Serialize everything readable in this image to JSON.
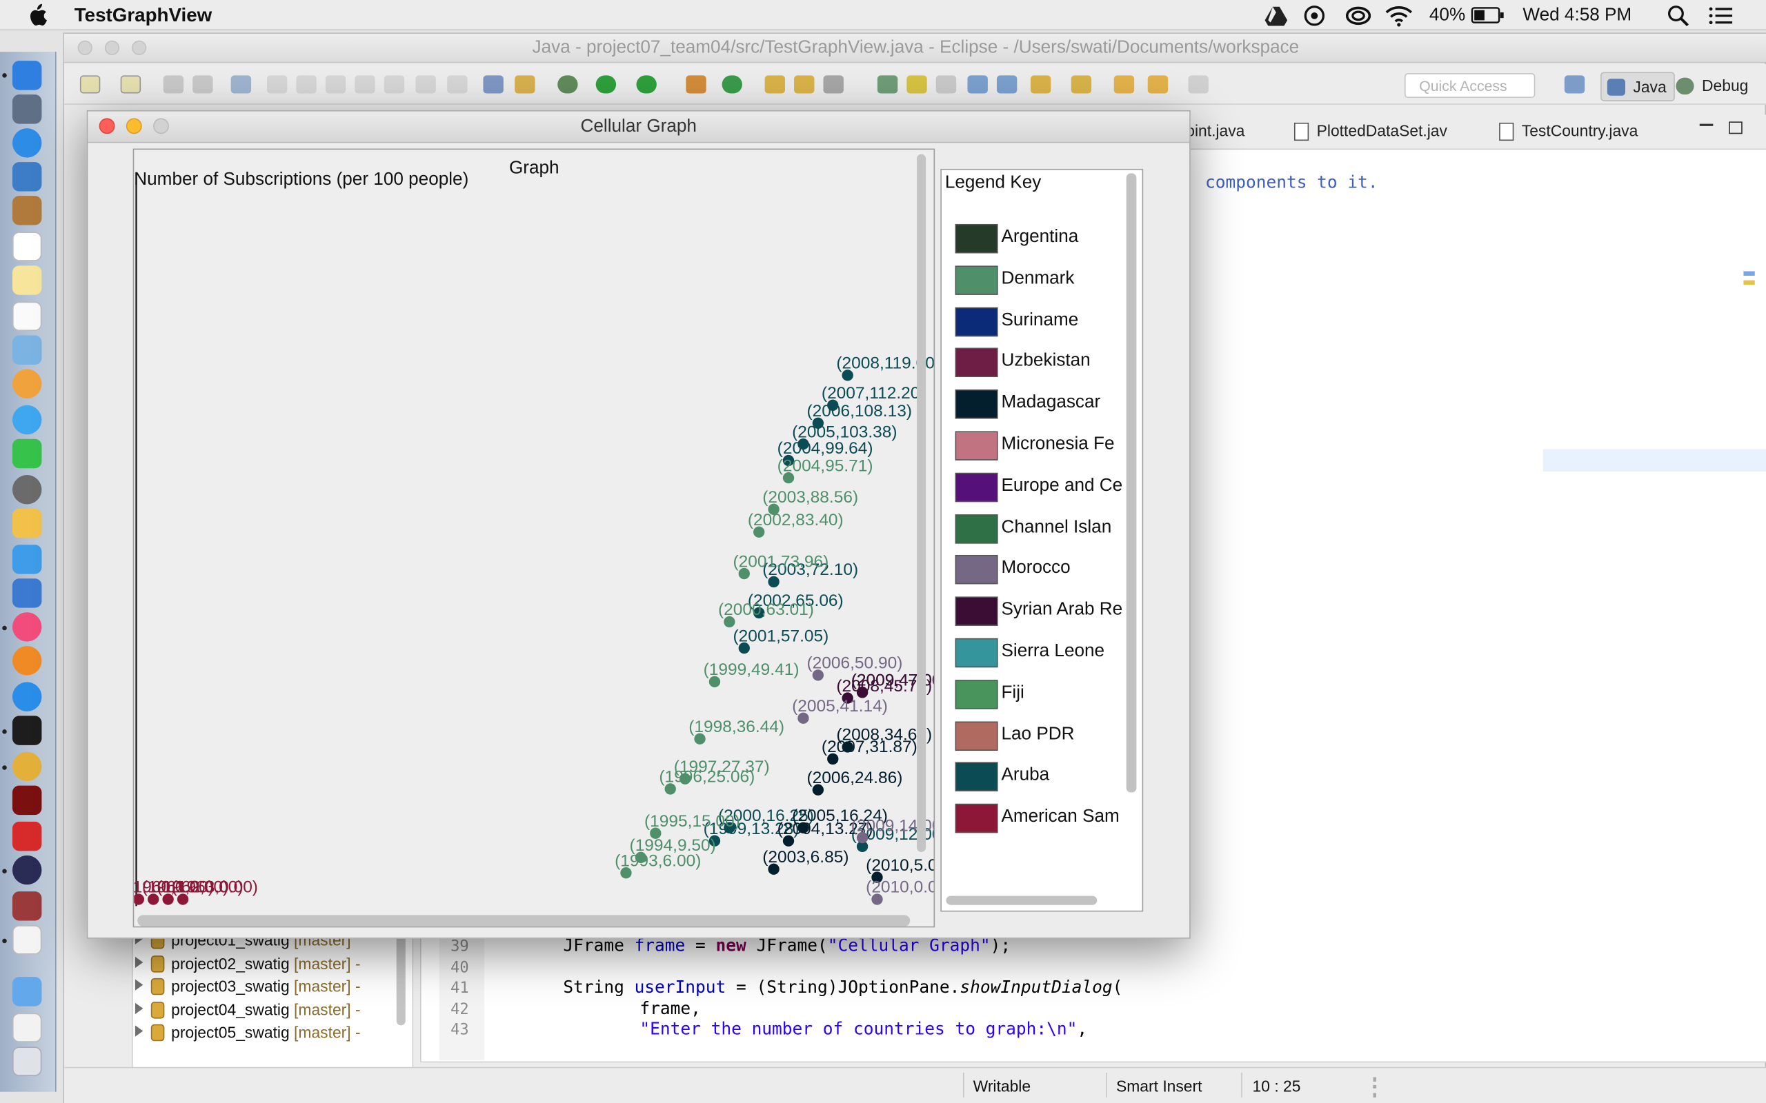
{
  "menubar": {
    "app_name": "TestGraphView",
    "battery": "40%",
    "clock": "Wed 4:58 PM"
  },
  "eclipse": {
    "title": "Java - project07_team04/src/TestGraphView.java - Eclipse - /Users/swati/Documents/workspace",
    "quick_access_placeholder": "Quick Access",
    "perspective_java": "Java",
    "perspective_debug": "Debug"
  },
  "editor": {
    "tabs": [
      "oint.java",
      "PlottedDataSet.jav",
      "TestCountry.java"
    ],
    "visible_comment": "components to it.",
    "line_numbers": [
      "39",
      "40",
      "41",
      "42",
      "43"
    ],
    "code": {
      "l39_a": "JFrame ",
      "l39_field": "frame",
      "l39_b": " = ",
      "l39_kw": "new",
      "l39_c": " JFrame(",
      "l39_str": "\"Cellular Graph\"",
      "l39_d": ");",
      "l41_a": "String ",
      "l41_field": "userInput",
      "l41_b": " = (String)JOptionPane.",
      "l41_method": "showInputDialog",
      "l41_c": "(",
      "l42": "frame,",
      "l43_str": "\"Enter the number of countries to graph:\\n\"",
      "l43_b": ","
    }
  },
  "project_explorer": {
    "items": [
      {
        "name": "project01_swatig",
        "branch": "[master]"
      },
      {
        "name": "project02_swatig",
        "branch": "[master] -"
      },
      {
        "name": "project03_swatig",
        "branch": "[master] -"
      },
      {
        "name": "project04_swatig",
        "branch": "[master] -"
      },
      {
        "name": "project05_swatig",
        "branch": "[master] -"
      }
    ]
  },
  "status_bar": {
    "writable": "Writable",
    "insert_mode": "Smart Insert",
    "position": "10 : 25"
  },
  "graph_window": {
    "title": "Cellular Graph",
    "graph_title": "Graph",
    "y_axis_label": "Number of Subscriptions (per 100 people)"
  },
  "legend": {
    "title": "Legend Key",
    "items": [
      {
        "name": "Argentina",
        "color": "#263a2a"
      },
      {
        "name": "Denmark",
        "color": "#4f8f6a"
      },
      {
        "name": "Suriname",
        "color": "#0b2a78"
      },
      {
        "name": "Uzbekistan",
        "color": "#6e1d44"
      },
      {
        "name": "Madagascar",
        "color": "#031e2c"
      },
      {
        "name": "Micronesia Fe",
        "color": "#c27381"
      },
      {
        "name": "Europe and Ce",
        "color": "#55107a"
      },
      {
        "name": "Channel Islan",
        "color": "#2f7046"
      },
      {
        "name": "Morocco",
        "color": "#746884"
      },
      {
        "name": "Syrian Arab Re",
        "color": "#3b0c34"
      },
      {
        "name": "Sierra Leone",
        "color": "#35959c"
      },
      {
        "name": "Fiji",
        "color": "#48945c"
      },
      {
        "name": "Lao PDR",
        "color": "#b06a5f"
      },
      {
        "name": "Aruba",
        "color": "#0b4b54"
      },
      {
        "name": "American Sam",
        "color": "#8c1737"
      }
    ]
  },
  "chart_data": {
    "type": "scatter",
    "title": "Graph",
    "ylabel": "Number of Subscriptions (per 100 people)",
    "series": [
      {
        "name": "Aruba",
        "color": "#0b4b54",
        "points": [
          [
            1999,
            13.28
          ],
          [
            2000,
            16.25
          ],
          [
            2001,
            57.05
          ],
          [
            2002,
            65.06
          ],
          [
            2003,
            72.1
          ],
          [
            2004,
            99.64
          ],
          [
            2005,
            103.38
          ],
          [
            2006,
            108.13
          ],
          [
            2007,
            112.2
          ],
          [
            2008,
            119
          ],
          [
            2009,
            12
          ]
        ]
      },
      {
        "name": "Denmark",
        "color": "#4f8f6a",
        "points": [
          [
            1993,
            6
          ],
          [
            1994,
            9.5
          ],
          [
            1995,
            15
          ],
          [
            1996,
            25.06
          ],
          [
            1997,
            27.37
          ],
          [
            1998,
            36.44
          ],
          [
            1999,
            49.41
          ],
          [
            2000,
            63.01
          ],
          [
            2001,
            73.96
          ],
          [
            2002,
            83.4
          ],
          [
            2003,
            88.56
          ],
          [
            2004,
            95.71
          ]
        ]
      },
      {
        "name": "Madagascar",
        "color": "#031e2c",
        "points": [
          [
            2003,
            6.85
          ],
          [
            2004,
            13.27
          ],
          [
            2005,
            16.24
          ],
          [
            2006,
            24.86
          ],
          [
            2007,
            31.87
          ],
          [
            2008,
            34.6
          ],
          [
            2009,
            47
          ],
          [
            2010,
            5
          ]
        ]
      },
      {
        "name": "Syrian Arab Re",
        "color": "#3b0c34",
        "points": [
          [
            2008,
            45.7
          ],
          [
            2009,
            47
          ]
        ]
      },
      {
        "name": "Morocco",
        "color": "#746884",
        "points": [
          [
            2005,
            41.14
          ],
          [
            2006,
            50.9
          ],
          [
            2009,
            14
          ],
          [
            2010,
            0
          ]
        ]
      },
      {
        "name": "American Sam",
        "color": "#8c1737",
        "points": [
          [
            1960,
            0
          ],
          [
            1961,
            0
          ],
          [
            1962,
            0
          ],
          [
            1963,
            0
          ]
        ]
      }
    ]
  }
}
